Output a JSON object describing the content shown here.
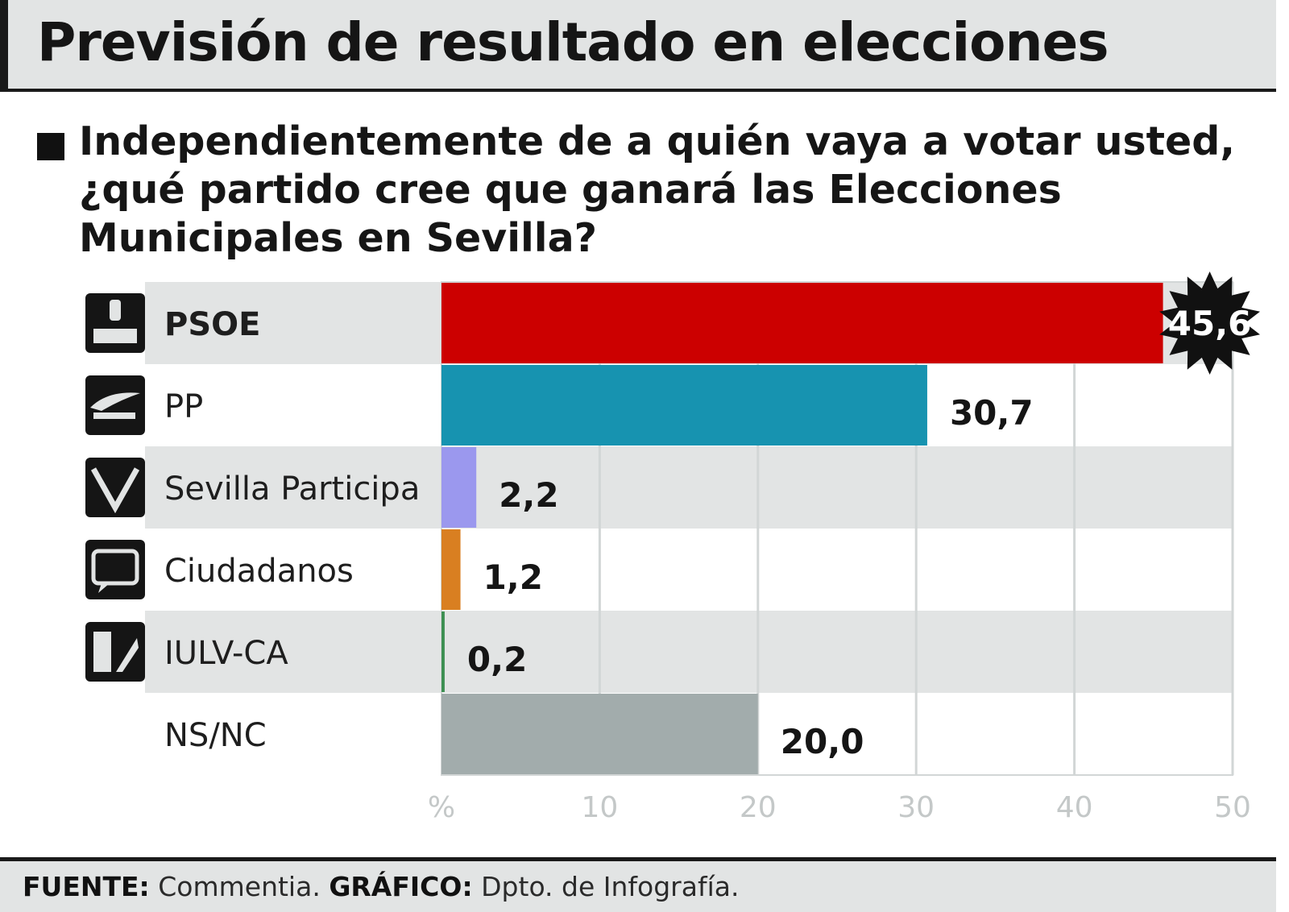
{
  "header": {
    "title": "Previsión de resultado en elecciones",
    "question": "Independientemente de a quién vaya a votar usted, ¿qué partido cree que ganará las Elecciones Municipales en Sevilla?"
  },
  "footer": {
    "source_label": "FUENTE:",
    "source_value": "Commentia.",
    "graphic_label": "GRÁFICO:",
    "graphic_value": "Dpto. de Infografía."
  },
  "chart_data": {
    "type": "bar",
    "orientation": "horizontal",
    "categories": [
      "PSOE",
      "PP",
      "Sevilla Participa",
      "Ciudadanos",
      "IULV-CA",
      "NS/NC"
    ],
    "values": [
      45.6,
      30.7,
      2.2,
      1.2,
      0.2,
      20.0
    ],
    "value_labels": [
      "45,6",
      "30,7",
      "2,2",
      "1,2",
      "0,2",
      "20,0"
    ],
    "colors": [
      "#cc0000",
      "#1793b0",
      "#9b98ee",
      "#d97f21",
      "#3d8f52",
      "#a2acac"
    ],
    "logo_icons": [
      "psoe-logo-icon",
      "pp-logo-icon",
      "sevilla-participa-logo-icon",
      "ciudadanos-logo-icon",
      "iulv-ca-logo-icon",
      ""
    ],
    "highlight_index": 0,
    "x_ticks": [
      "%",
      "10",
      "20",
      "30",
      "40",
      "50"
    ],
    "xlim": [
      0,
      50
    ],
    "grid": true
  }
}
